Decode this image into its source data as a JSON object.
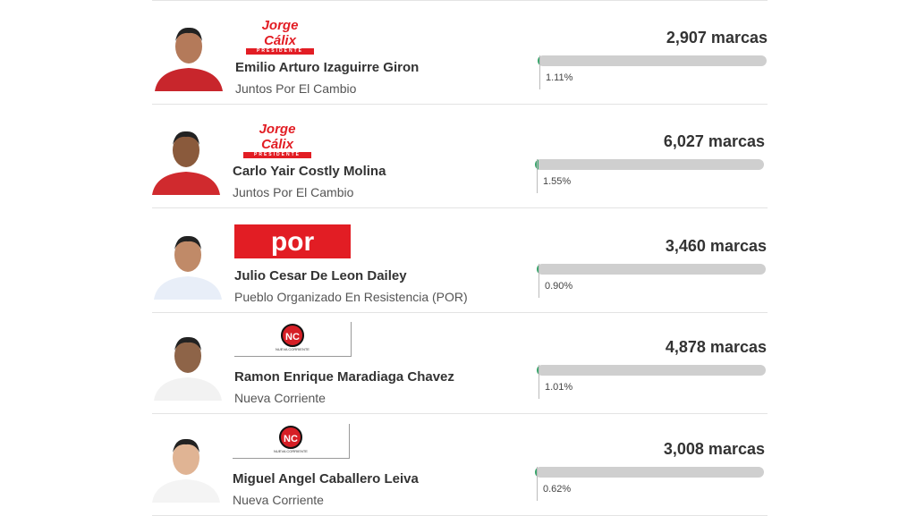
{
  "candidates": [
    {
      "name": "Emilio Arturo Izaguirre Giron",
      "party": "Juntos Por El Cambio",
      "votes": "2,907 marcas",
      "percent": 1.11,
      "percent_label": "1.11%",
      "logo": {
        "text": "Jorge Cálix",
        "subtext": "PRESIDENTE"
      }
    },
    {
      "name": "Carlo Yair Costly Molina",
      "party": "Juntos Por El Cambio",
      "votes": "6,027 marcas",
      "percent": 1.55,
      "percent_label": "1.55%",
      "logo": {
        "text": "Jorge Cálix",
        "subtext": "PRESIDENTE"
      }
    },
    {
      "name": "Julio Cesar De Leon Dailey",
      "party": "Pueblo Organizado En Resistencia (POR)",
      "votes": "3,460 marcas",
      "percent": 0.9,
      "percent_label": "0.90%",
      "logo": {
        "text": "por"
      }
    },
    {
      "name": "Ramon Enrique Maradiaga Chavez",
      "party": "Nueva Corriente",
      "votes": "4,878 marcas",
      "percent": 1.01,
      "percent_label": "1.01%",
      "logo": {
        "text": "NC",
        "subtext": "NUEVA CORRIENTE"
      }
    },
    {
      "name": "Miguel Angel Caballero Leiva",
      "party": "Nueva Corriente",
      "votes": "3,008 marcas",
      "percent": 0.62,
      "percent_label": "0.62%",
      "logo": {
        "text": "NC",
        "subtext": "NUEVA CORRIENTE"
      }
    }
  ]
}
